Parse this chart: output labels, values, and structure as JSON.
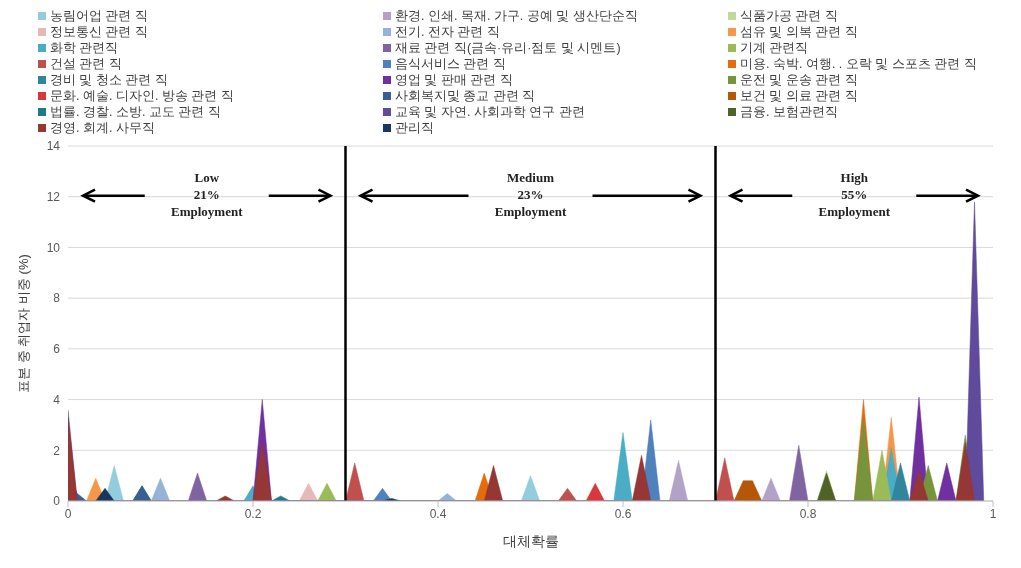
{
  "chart_data": {
    "type": "area",
    "xlabel": "대체확률",
    "ylabel": "표본 중 취업자 비중 (%)",
    "xlim": [
      0,
      1
    ],
    "xticks": [
      0,
      0.2,
      0.4,
      0.6,
      0.8,
      1
    ],
    "ylim": [
      0,
      14
    ],
    "yticks": [
      0,
      2,
      4,
      6,
      8,
      10,
      12,
      14
    ],
    "grid": "y",
    "legend": "top",
    "ref_lines": [
      {
        "axis": "x",
        "value": 0.3,
        "color": "#000000"
      },
      {
        "axis": "x",
        "value": 0.7,
        "color": "#000000"
      }
    ],
    "annotations": [
      "Low\n21%\nEmployment",
      "Medium\n23%\nEmployment",
      "High\n55%\nEmployment"
    ],
    "series": [
      {
        "name": "농림어업 관련 직",
        "color": "#93cddd",
        "x": [
          0.04,
          0.05,
          0.06,
          0.49,
          0.5,
          0.51
        ],
        "values": [
          0,
          1.4,
          0,
          0,
          1.0,
          0
        ]
      },
      {
        "name": "환경. 인쇄. 목재. 가구. 공예 및 생산단순직",
        "color": "#b3a2c7",
        "x": [
          0.65,
          0.66,
          0.67,
          0.75,
          0.76,
          0.77
        ],
        "values": [
          0,
          1.6,
          0,
          0,
          0.9,
          0
        ]
      },
      {
        "name": "식품가공 관련 직",
        "color": "#c3d69b",
        "x": [
          0.81,
          0.82,
          0.83
        ],
        "values": [
          0,
          1.2,
          0
        ]
      },
      {
        "name": "정보통신 관련 직",
        "color": "#e6b9b8",
        "x": [
          0.25,
          0.26,
          0.27
        ],
        "values": [
          0,
          0.7,
          0
        ]
      },
      {
        "name": "전기. 전자 관련 직",
        "color": "#95b3d7",
        "x": [
          0.09,
          0.1,
          0.11,
          0.4,
          0.41,
          0.42
        ],
        "values": [
          0,
          0.9,
          0,
          0,
          0.3,
          0
        ]
      },
      {
        "name": "섬유 및 의복 관련 직",
        "color": "#f79646",
        "x": [
          0.02,
          0.03,
          0.04,
          0.88,
          0.89,
          0.9
        ],
        "values": [
          0,
          0.9,
          0,
          0,
          3.3,
          0
        ]
      },
      {
        "name": "화학 관련직",
        "color": "#4bacc6",
        "x": [
          0.19,
          0.2,
          0.21,
          0.59,
          0.6,
          0.61,
          0.88,
          0.89,
          0.9
        ],
        "values": [
          0,
          0.6,
          0,
          0,
          2.7,
          0,
          0,
          2.1,
          0
        ]
      },
      {
        "name": "재료 관련 직(금속·유리·점토 및 시멘트)",
        "color": "#8064a2",
        "x": [
          0.13,
          0.14,
          0.15,
          0.78,
          0.79,
          0.8
        ],
        "values": [
          0,
          1.1,
          0,
          0,
          2.2,
          0
        ]
      },
      {
        "name": "기계 관련직",
        "color": "#9bbb59",
        "x": [
          0.27,
          0.28,
          0.29,
          0.87,
          0.88,
          0.89
        ],
        "values": [
          0,
          0.7,
          0,
          0,
          2.0,
          0
        ]
      },
      {
        "name": "건설 관련 직",
        "color": "#c0504d",
        "x": [
          0.3,
          0.31,
          0.32,
          0.53,
          0.54,
          0.55,
          0.7,
          0.71,
          0.72
        ],
        "values": [
          0,
          1.5,
          0,
          0,
          0.5,
          0,
          0,
          1.7,
          0
        ]
      },
      {
        "name": "음식서비스 관련 직",
        "color": "#4f81bd",
        "x": [
          0.33,
          0.34,
          0.35,
          0.62,
          0.63,
          0.64
        ],
        "values": [
          0,
          0.5,
          0,
          0,
          3.2,
          0
        ]
      },
      {
        "name": "미용. 숙박. 여행. . 오락 및 스포츠 관련 직",
        "color": "#e46c0a",
        "x": [
          0.44,
          0.45,
          0.46,
          0.85,
          0.86,
          0.87
        ],
        "values": [
          0,
          1.1,
          0,
          0,
          4.0,
          0
        ]
      },
      {
        "name": "경비 및 청소 관련 직",
        "color": "#31859c",
        "x": [
          0.07,
          0.08,
          0.09,
          0.89,
          0.9,
          0.91
        ],
        "values": [
          0,
          0.6,
          0,
          0,
          1.5,
          0
        ]
      },
      {
        "name": "영업 및 판매 관련 직",
        "color": "#7030a0",
        "x": [
          0.2,
          0.21,
          0.22,
          0.91,
          0.92,
          0.93,
          0.94,
          0.95,
          0.96
        ],
        "values": [
          0,
          4.0,
          0,
          0,
          4.1,
          0,
          0,
          1.5,
          0
        ]
      },
      {
        "name": "운전 및 운송 관련 직",
        "color": "#77933c",
        "x": [
          0.85,
          0.86,
          0.87,
          0.92,
          0.93,
          0.94,
          0.96,
          0.97,
          0.98
        ],
        "values": [
          0,
          3.3,
          0,
          0,
          1.4,
          0,
          0,
          2.6,
          0
        ]
      },
      {
        "name": "문화. 예술. 디자인. 방송 관련 직",
        "color": "#d9363e",
        "x": [
          0.56,
          0.57,
          0.58
        ],
        "values": [
          0,
          0.7,
          0
        ]
      },
      {
        "name": "사회복지및 종교 관련 직",
        "color": "#366092",
        "x": [
          0,
          0.01,
          0.02,
          0.07,
          0.08,
          0.09
        ],
        "values": [
          1.0,
          0.3,
          0,
          0,
          0.6,
          0
        ]
      },
      {
        "name": "보건 및 의료 관련 직",
        "color": "#b65708",
        "x": [
          0.72,
          0.73,
          0.74,
          0.75
        ],
        "values": [
          0,
          0.8,
          0.8,
          0
        ]
      },
      {
        "name": "법률. 경찰. 소방. 교도 관련 직",
        "color": "#1f7a8c",
        "x": [
          0.22,
          0.23,
          0.24
        ],
        "values": [
          0,
          0.2,
          0
        ]
      },
      {
        "name": "교육 및 자연. 사회과학 연구 관련",
        "color": "#604a9b",
        "x": [
          0,
          0.01,
          0.97,
          0.98,
          0.99
        ],
        "values": [
          3.6,
          0,
          0,
          11.8,
          0
        ]
      },
      {
        "name": "금융. 보험관련직",
        "color": "#4f6228",
        "x": [
          0.81,
          0.82,
          0.83
        ],
        "values": [
          0,
          1.1,
          0
        ]
      },
      {
        "name": "경영. 회계. 사무직",
        "color": "#953735",
        "x": [
          0,
          0.01,
          0.16,
          0.17,
          0.18,
          0.2,
          0.21,
          0.22,
          0.45,
          0.46,
          0.47,
          0.61,
          0.62,
          0.63,
          0.91,
          0.92,
          0.93,
          0.96,
          0.97,
          0.98
        ],
        "values": [
          3.3,
          0,
          0,
          0.2,
          0,
          0,
          2.3,
          0,
          0,
          1.4,
          0,
          0,
          1.8,
          0,
          0,
          1.2,
          0,
          0,
          2.3,
          0
        ]
      },
      {
        "name": "관리직",
        "color": "#17375e",
        "x": [
          0.03,
          0.04,
          0.05,
          0.34,
          0.35,
          0.36
        ],
        "values": [
          0,
          0.5,
          0,
          0,
          0.1,
          0
        ]
      }
    ]
  }
}
